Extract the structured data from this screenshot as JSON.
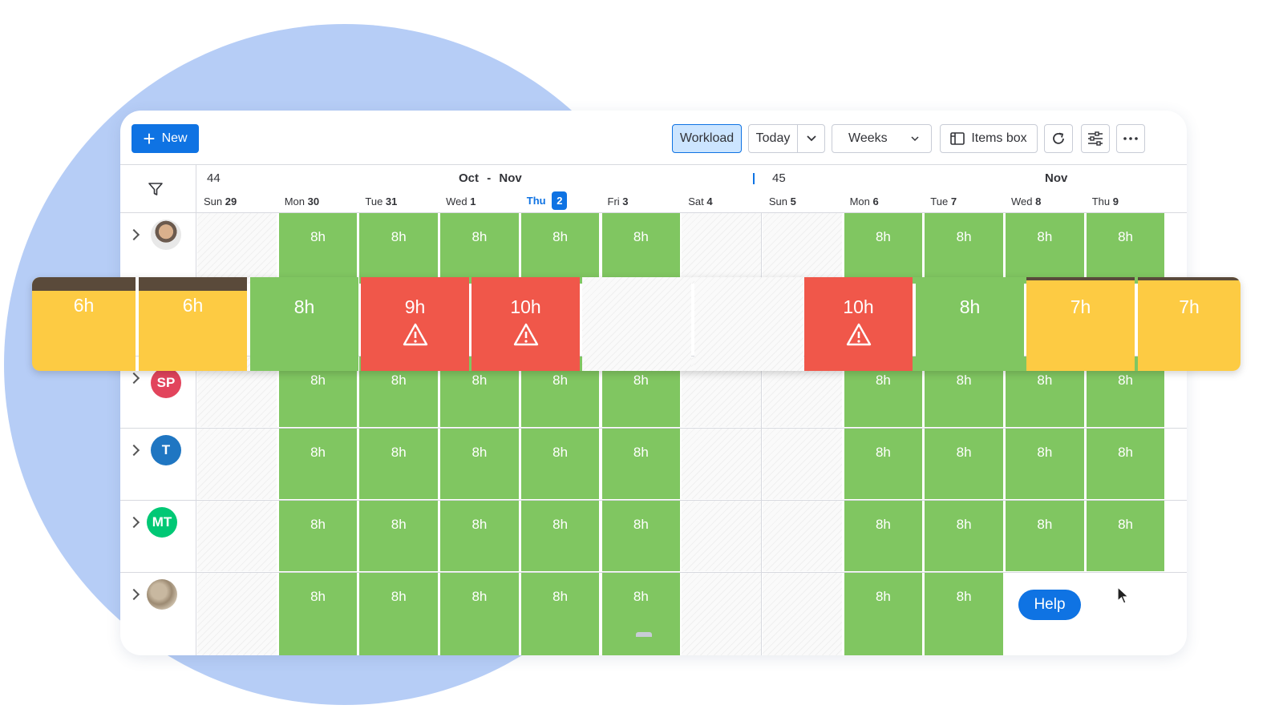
{
  "toolbar": {
    "new_label": "New",
    "workload_label": "Workload",
    "today_label": "Today",
    "weeks_label": "Weeks",
    "items_box_label": "Items box"
  },
  "header": {
    "week_44": "44",
    "month_range_left": "Oct",
    "month_range_sep": "-",
    "month_range_right": "Nov",
    "week_45": "45",
    "month_right": "Nov"
  },
  "days": [
    {
      "dow": "Sun",
      "num": "29"
    },
    {
      "dow": "Mon",
      "num": "30"
    },
    {
      "dow": "Tue",
      "num": "31"
    },
    {
      "dow": "Wed",
      "num": "1"
    },
    {
      "dow": "Thu",
      "num": "2",
      "today": true
    },
    {
      "dow": "Fri",
      "num": "3"
    },
    {
      "dow": "Sat",
      "num": "4"
    },
    {
      "dow": "Sun",
      "num": "5"
    },
    {
      "dow": "Mon",
      "num": "6"
    },
    {
      "dow": "Tue",
      "num": "7"
    },
    {
      "dow": "Wed",
      "num": "8"
    },
    {
      "dow": "Thu",
      "num": "9"
    }
  ],
  "rows": [
    {
      "avatar": "photo",
      "cells": [
        "8h",
        "8h",
        "8h",
        "8h",
        "8h",
        "8h",
        "8h",
        "8h",
        "8h"
      ]
    },
    {
      "avatar": "SP",
      "avatar_color": "#e2445c",
      "cells": [
        "8h",
        "8h",
        "8h",
        "8h",
        "8h",
        "8h",
        "8h",
        "8h",
        "8h"
      ]
    },
    {
      "avatar": "T",
      "avatar_color": "#1f76c2",
      "cells": [
        "8h",
        "8h",
        "8h",
        "8h",
        "8h",
        "8h",
        "8h",
        "8h",
        "8h"
      ]
    },
    {
      "avatar": "MT",
      "avatar_color": "#00c875",
      "cells": [
        "8h",
        "8h",
        "8h",
        "8h",
        "8h",
        "8h",
        "8h",
        "8h",
        "8h"
      ]
    },
    {
      "avatar": "photo",
      "cells": [
        "8h",
        "8h",
        "8h",
        "8h",
        "8h",
        "8h",
        "8h"
      ]
    }
  ],
  "popup_cells": [
    "6h",
    "6h",
    "8h",
    "9h",
    "10h",
    "10h",
    "8h",
    "7h",
    "7h"
  ],
  "colors": {
    "green": "#80c661",
    "red": "#f0574a",
    "yellow": "#fdcb43",
    "accent": "#0f73e3"
  },
  "help_label": "Help"
}
